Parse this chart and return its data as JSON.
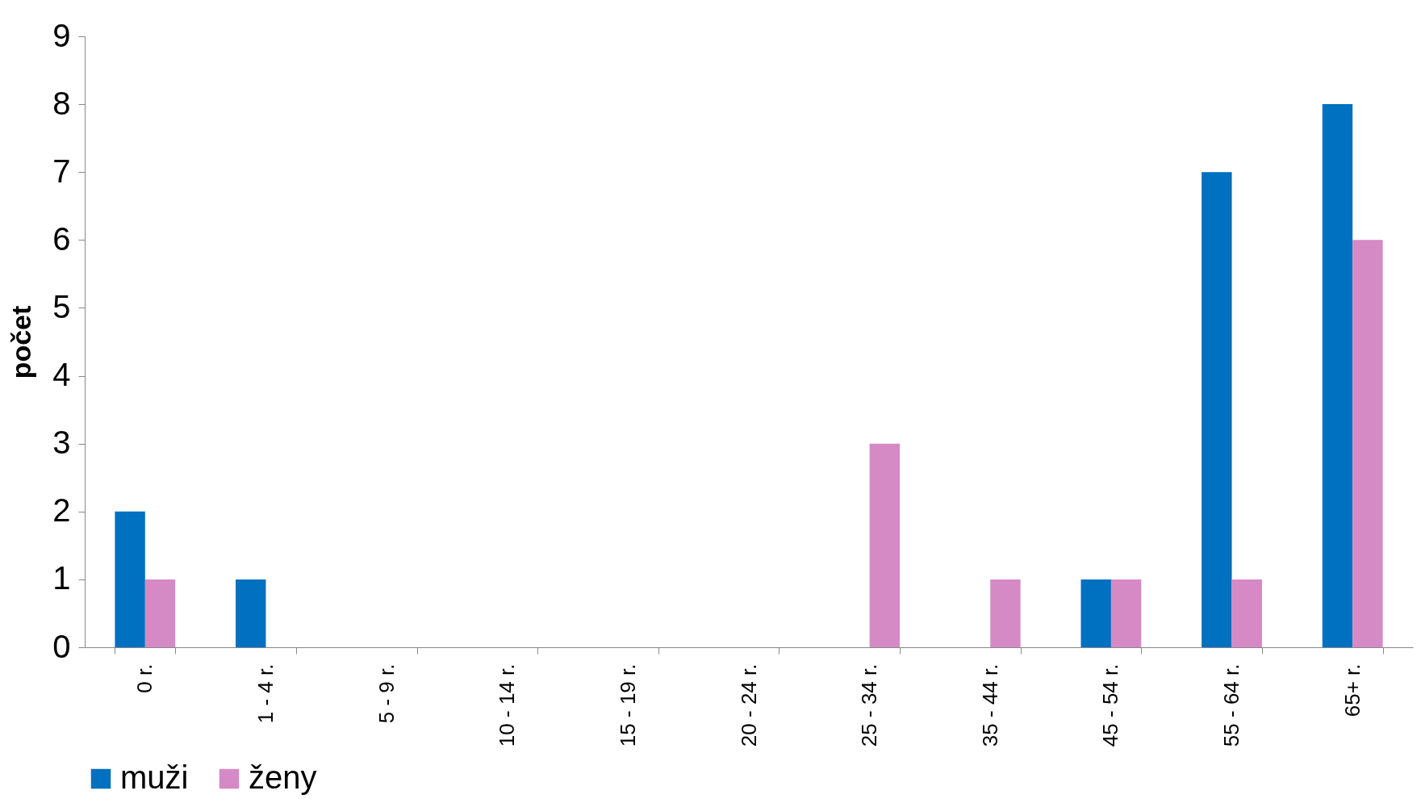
{
  "chart_data": {
    "type": "bar",
    "ylabel": "počet",
    "categories": [
      "0 r.",
      "1 - 4 r.",
      "5 - 9 r.",
      "10 - 14 r.",
      "15 - 19 r.",
      "20 - 24 r.",
      "25 - 34 r.",
      "35 - 44 r.",
      "45 - 54 r.",
      "55 - 64 r.",
      "65+ r."
    ],
    "series": [
      {
        "name": "muži",
        "color": "#0070c0",
        "values": [
          2,
          1,
          0,
          0,
          0,
          0,
          0,
          0,
          1,
          7,
          8
        ]
      },
      {
        "name": "ženy",
        "color": "#d58ac5",
        "values": [
          1,
          0,
          0,
          0,
          0,
          0,
          3,
          1,
          1,
          1,
          6
        ]
      }
    ],
    "ylim": [
      0,
      9
    ],
    "yticks": [
      0,
      1,
      2,
      3,
      4,
      5,
      6,
      7,
      8,
      9
    ],
    "grid": false,
    "legend": "bottom"
  }
}
